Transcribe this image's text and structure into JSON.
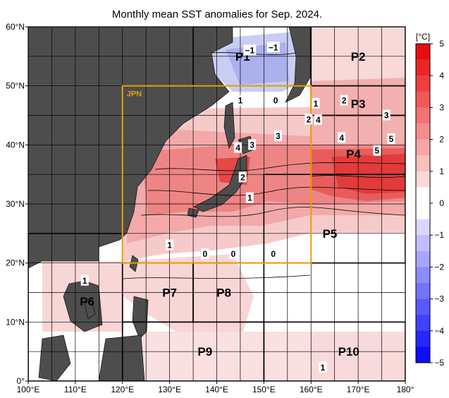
{
  "title": "Monthly mean SST anomalies for Sep. 2024.",
  "map": {
    "lon_range": [
      100,
      180
    ],
    "lat_range": [
      0,
      60
    ],
    "lon_ticks": [
      "100°E",
      "110°E",
      "120°E",
      "130°E",
      "140°E",
      "150°E",
      "160°E",
      "170°E",
      "180°"
    ],
    "lat_ticks": [
      "0°",
      "10°N",
      "20°N",
      "30°N",
      "40°N",
      "50°N",
      "60°N"
    ],
    "land_color": "#4d4d4d",
    "grid_color": "#000000"
  },
  "colorbar": {
    "unit_label": "[°C]",
    "ticks": [
      "5",
      "4",
      "3",
      "2",
      "1",
      "0",
      "−1",
      "−2",
      "−3",
      "−4",
      "−5"
    ],
    "min": -5,
    "max": 5,
    "palette": {
      "cold_max": "#0000ff",
      "neutral": "#ffffff",
      "warm_max": "#e60000"
    }
  },
  "jpn_box": {
    "label": "JPN",
    "lon": [
      120,
      160
    ],
    "lat": [
      20,
      50
    ],
    "color": "#e6a000"
  },
  "regions": [
    {
      "label": "P1",
      "lon": [
        135,
        160
      ],
      "lat": [
        50,
        60
      ],
      "label_at": [
        145.5,
        55
      ]
    },
    {
      "label": "P2",
      "lon": [
        160,
        180
      ],
      "lat": [
        50,
        60
      ],
      "label_at": [
        170,
        55
      ]
    },
    {
      "label": "P3",
      "lon": [
        160,
        180
      ],
      "lat": [
        45,
        50
      ],
      "label_at": [
        170,
        47
      ]
    },
    {
      "label": "P4",
      "lon": [
        160,
        180
      ],
      "lat": [
        35,
        45
      ],
      "label_at": [
        169,
        38.5
      ]
    },
    {
      "label": "P5",
      "lon": [
        150,
        180
      ],
      "lat": [
        20,
        35
      ],
      "label_at": [
        164,
        25
      ]
    },
    {
      "label": "P6",
      "lon": [
        100,
        120
      ],
      "lat": [
        0,
        25
      ],
      "label_at": [
        112.5,
        13.5
      ]
    },
    {
      "label": "P7",
      "lon": [
        120,
        135
      ],
      "lat": [
        10,
        20
      ],
      "label_at": [
        130,
        15
      ]
    },
    {
      "label": "P8",
      "lon": [
        135,
        150
      ],
      "lat": [
        10,
        20
      ],
      "label_at": [
        141.5,
        15
      ]
    },
    {
      "label": "P9",
      "lon": [
        120,
        150
      ],
      "lat": [
        0,
        10
      ],
      "label_at": [
        137.5,
        5
      ]
    },
    {
      "label": "P10",
      "lon": [
        150,
        180
      ],
      "lat": [
        0,
        10
      ],
      "label_at": [
        168,
        5
      ]
    }
  ],
  "contour_labels": [
    {
      "text": "−1",
      "lon": [
        147
      ],
      "lat": [
        56
      ]
    },
    {
      "text": "−1",
      "lon": [
        152
      ],
      "lat": [
        56.5
      ]
    },
    {
      "text": "1",
      "lon": [
        145
      ],
      "lat": [
        47.5
      ]
    },
    {
      "text": "0",
      "lon": [
        152.5
      ],
      "lat": [
        47.5
      ]
    },
    {
      "text": "1",
      "lon": [
        161
      ],
      "lat": [
        47
      ]
    },
    {
      "text": "2",
      "lon": [
        167
      ],
      "lat": [
        47.5
      ]
    },
    {
      "text": "2",
      "lon": [
        159.5
      ],
      "lat": [
        44.3
      ]
    },
    {
      "text": "4",
      "lon": [
        161.5
      ],
      "lat": [
        44.2
      ]
    },
    {
      "text": "3",
      "lon": [
        176
      ],
      "lat": [
        45
      ]
    },
    {
      "text": "3",
      "lon": [
        153
      ],
      "lat": [
        41.5
      ]
    },
    {
      "text": "4",
      "lon": [
        144.5
      ],
      "lat": [
        39.5
      ]
    },
    {
      "text": "3",
      "lon": [
        147.5
      ],
      "lat": [
        40
      ]
    },
    {
      "text": "4",
      "lon": [
        166.5
      ],
      "lat": [
        41.2
      ]
    },
    {
      "text": "5",
      "lon": [
        177
      ],
      "lat": [
        41
      ]
    },
    {
      "text": "5",
      "lon": [
        174
      ],
      "lat": [
        39
      ]
    },
    {
      "text": "2",
      "lon": [
        145.5
      ],
      "lat": [
        34.5
      ]
    },
    {
      "text": "1",
      "lon": [
        147
      ],
      "lat": [
        31
      ]
    },
    {
      "text": "1",
      "lon": [
        130
      ],
      "lat": [
        23
      ]
    },
    {
      "text": "0",
      "lon": [
        137.5
      ],
      "lat": [
        21.5
      ]
    },
    {
      "text": "0",
      "lon": [
        143.5
      ],
      "lat": [
        21.5
      ]
    },
    {
      "text": "0",
      "lon": [
        152
      ],
      "lat": [
        21.5
      ]
    },
    {
      "text": "1",
      "lon": [
        112
      ],
      "lat": [
        17
      ]
    },
    {
      "text": "1",
      "lon": [
        162.5
      ],
      "lat": [
        2.3
      ]
    }
  ]
}
